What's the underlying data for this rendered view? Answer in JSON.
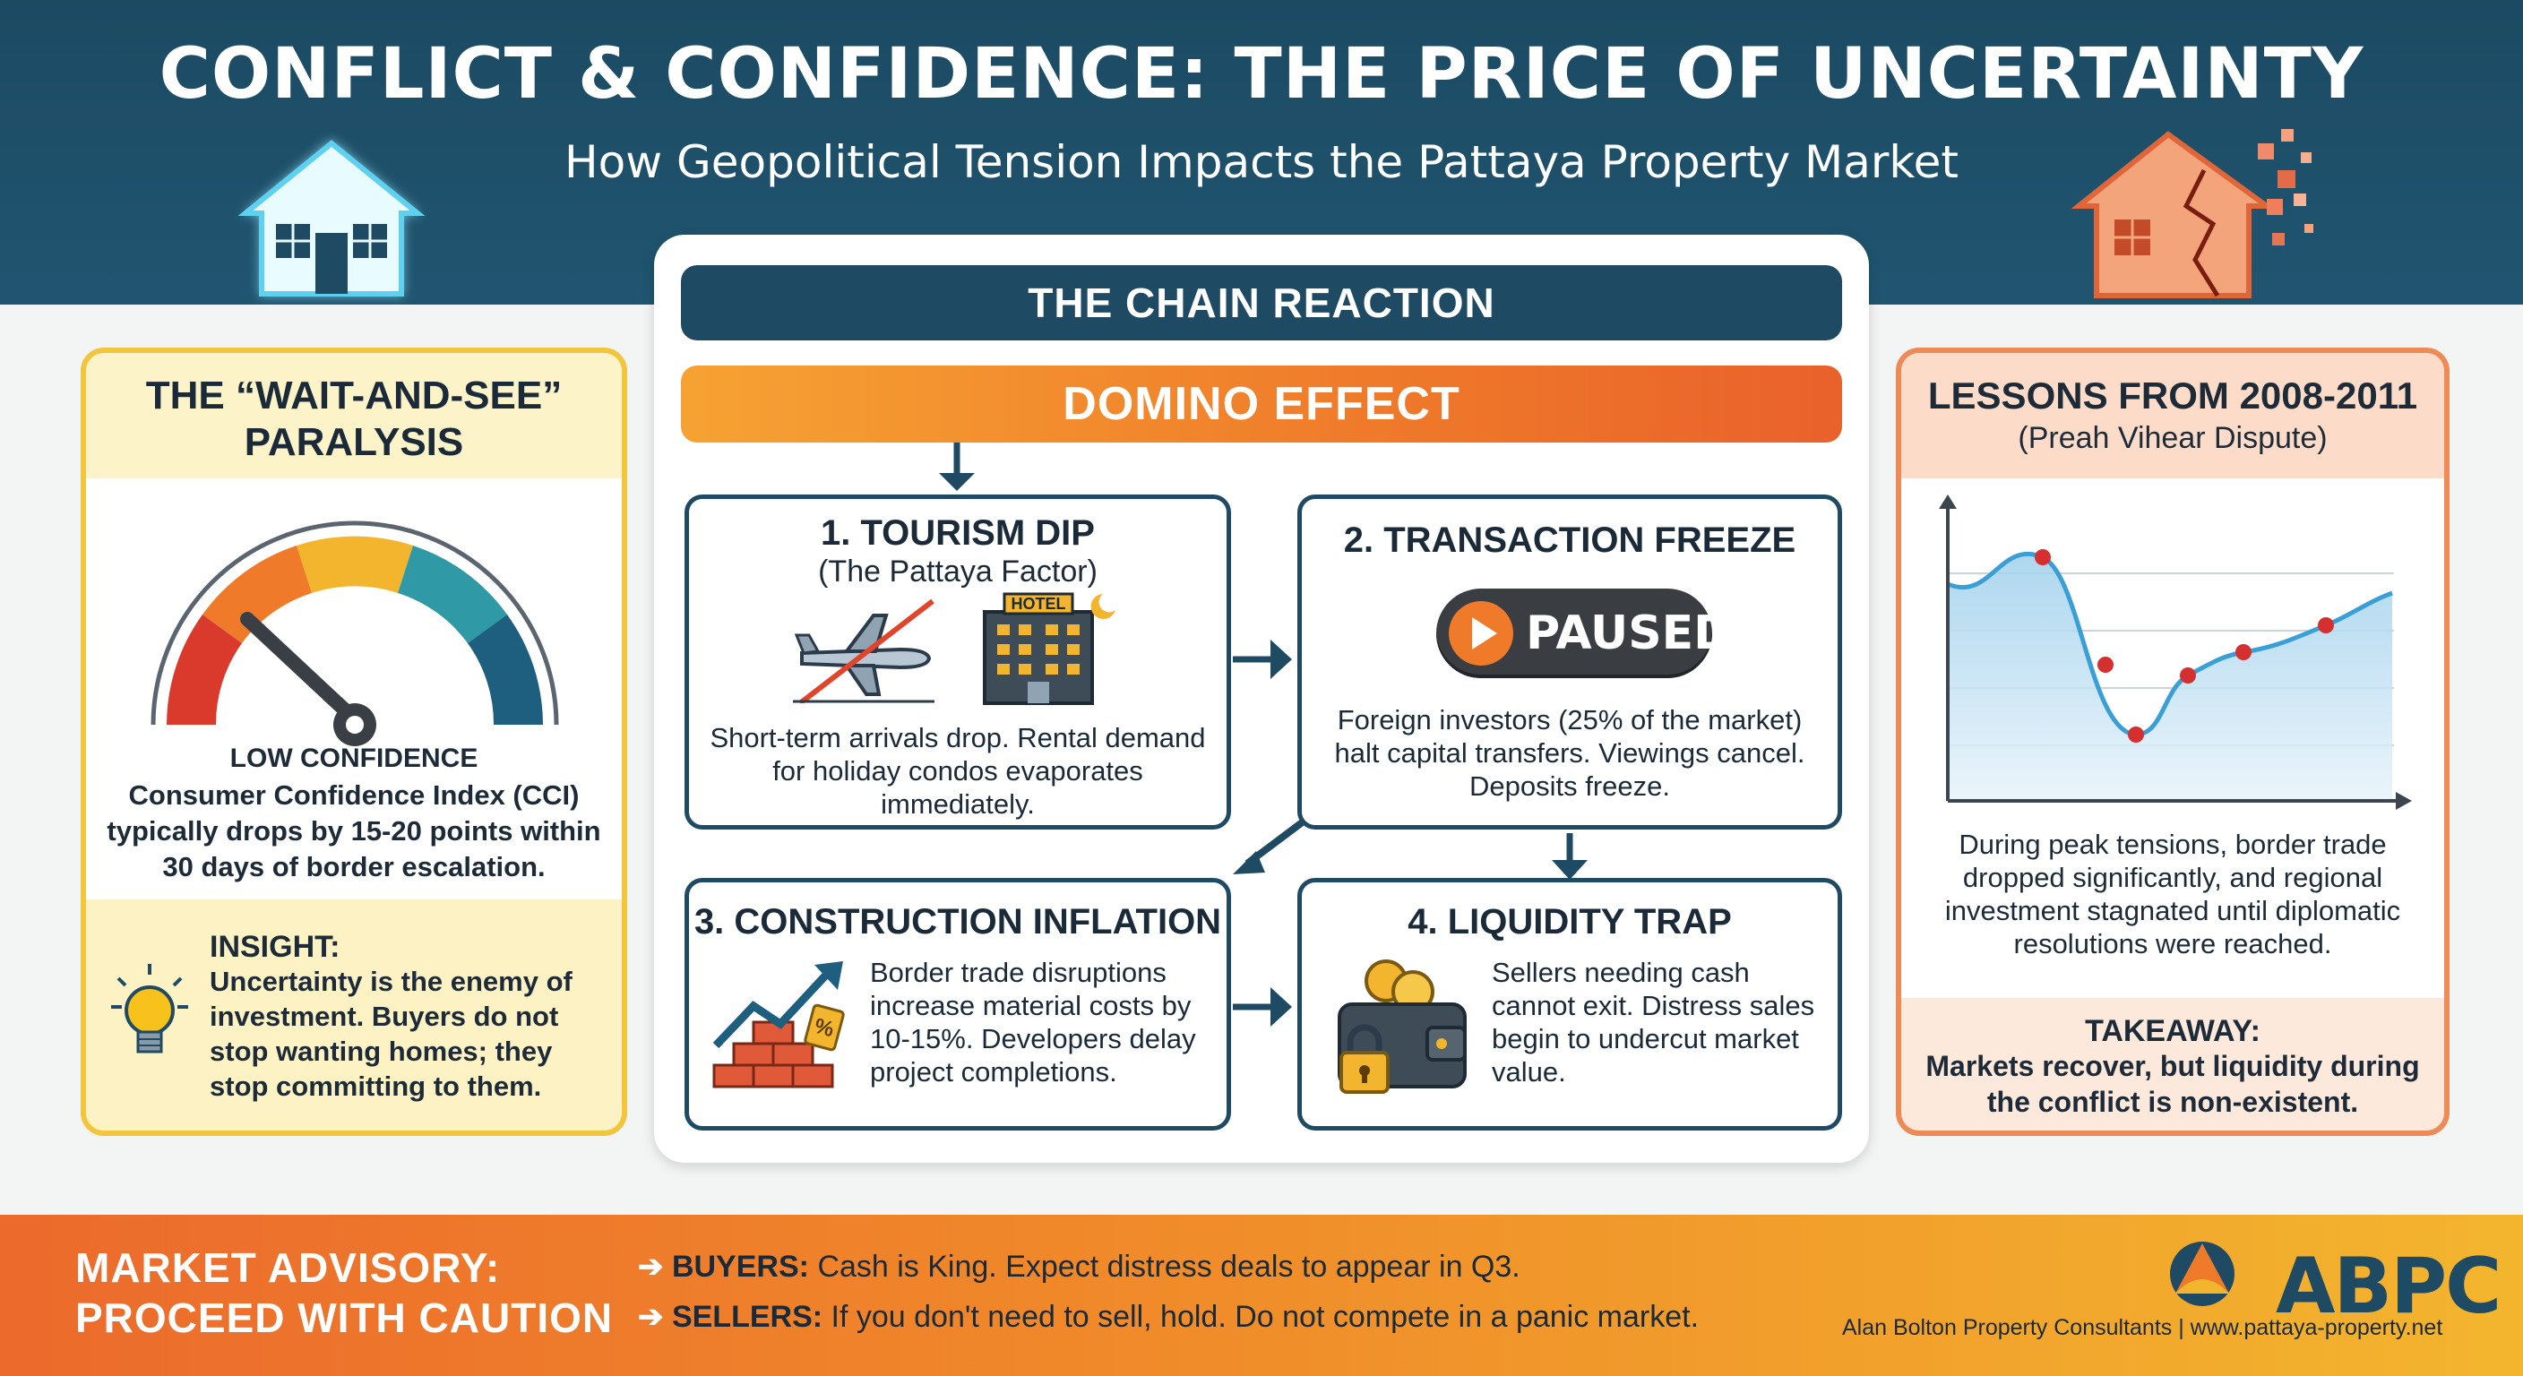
{
  "header": {
    "title": "CONFLICT & CONFIDENCE: THE PRICE OF UNCERTAINTY",
    "subtitle": "How Geopolitical Tension Impacts the Pattaya Property Market"
  },
  "left_panel": {
    "title": "THE “WAIT-AND-SEE” PARALYSIS",
    "gauge_label": "LOW CONFIDENCE",
    "cci_text": "Consumer Confidence Index (CCI) typically drops by 15-20 points within 30 days of border escalation.",
    "insight_head": "INSIGHT:",
    "insight_text": "Uncertainty is the enemy of investment. Buyers do not stop wanting homes; they stop committing to them.",
    "gauge_level": 0.2
  },
  "center": {
    "chain_title": "THE CHAIN REACTION",
    "domino_title": "DOMINO EFFECT",
    "boxes": [
      {
        "title": "1. TOURISM DIP",
        "subtitle": "(The Pattaya Factor)",
        "text": "Short-term arrivals drop. Rental demand for holiday condos evaporates immediately.",
        "hotel_sign": "HOTEL"
      },
      {
        "title": "2. TRANSACTION FREEZE",
        "button": "PAUSED",
        "text": "Foreign investors (25% of the market) halt capital transfers. Viewings cancel. Deposits freeze."
      },
      {
        "title": "3. CONSTRUCTION INFLATION",
        "text": "Border trade disruptions increase material costs by 10-15%. Developers delay project completions.",
        "tag": "%"
      },
      {
        "title": "4. LIQUIDITY TRAP",
        "text": "Sellers needing cash cannot exit. Distress sales begin to undercut market value."
      }
    ]
  },
  "right_panel": {
    "title": "LESSONS FROM 2008-2011",
    "subtitle": "(Preah Vihear Dispute)",
    "text": "During peak tensions, border trade dropped significantly, and regional investment stagnated until diplomatic resolutions were reached.",
    "takeaway_head": "TAKEAWAY:",
    "takeaway_text": "Markets recover, but liquidity during the conflict is non-existent."
  },
  "footer": {
    "advisory_line1": "MARKET ADVISORY:",
    "advisory_line2": "PROCEED WITH CAUTION",
    "buyers_label": "BUYERS:",
    "buyers_text": "Cash is King. Expect distress deals to appear in Q3.",
    "sellers_label": "SELLERS:",
    "sellers_text": "If you don't need to sell, hold. Do not compete in a panic market.",
    "logo": "ABPC",
    "credit": "Alan Bolton Property Consultants | www.pattaya-property.net"
  },
  "colors": {
    "navy": "#1e4a63",
    "orange": "#ef7a2a",
    "yellow": "#f2c53d",
    "red_dot": "#d62f2f",
    "chart_line": "#3a9fd6"
  }
}
